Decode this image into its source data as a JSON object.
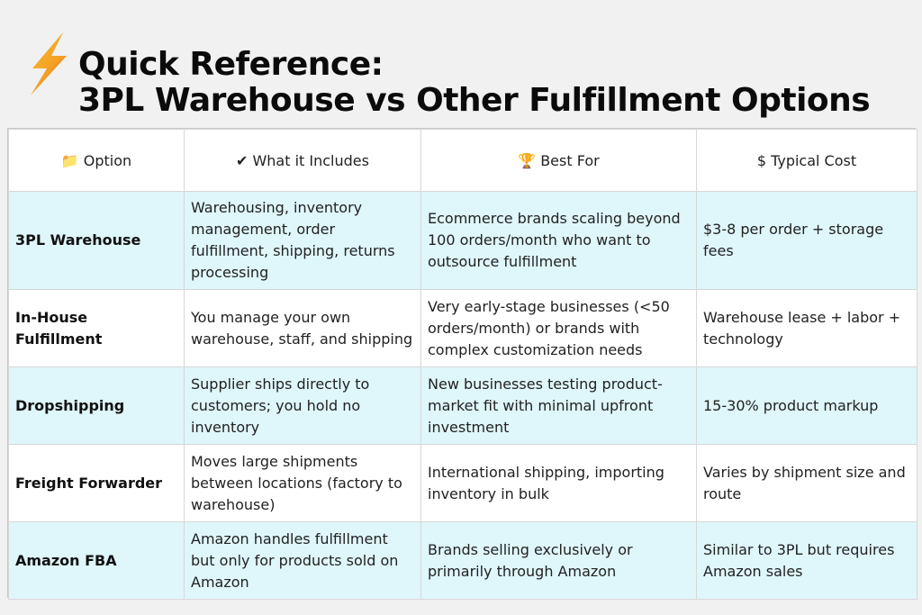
{
  "header": {
    "icon": "lightning-bolt-icon",
    "title_line1": "Quick Reference:",
    "title_line2": "3PL Warehouse vs Other Fulfillment Options"
  },
  "table": {
    "columns": [
      {
        "icon": "📁",
        "icon_name": "folder-icon",
        "label": "Option"
      },
      {
        "icon": "✔",
        "icon_name": "checkmark-icon",
        "label": "What it Includes"
      },
      {
        "icon": "🏆",
        "icon_name": "trophy-icon",
        "label": "Best For"
      },
      {
        "icon": "$",
        "icon_name": "dollar-icon",
        "label": "Typical Cost"
      }
    ],
    "rows": [
      {
        "option": "3PL Warehouse",
        "includes": "Warehousing, inventory management, order fulfillment, shipping, returns processing",
        "best_for": "Ecommerce brands scaling beyond 100 orders/month who want to outsource fulfillment",
        "cost": "$3-8 per order + storage fees"
      },
      {
        "option": "In-House Fulfillment",
        "includes": "You manage your own warehouse, staff, and shipping",
        "best_for": "Very early-stage businesses (<50 orders/month) or brands with complex customization needs",
        "cost": "Warehouse lease + labor + technology"
      },
      {
        "option": "Dropshipping",
        "includes": "Supplier ships directly to customers; you hold no inventory",
        "best_for": "New businesses testing product-market fit with minimal upfront investment",
        "cost": "15-30% product markup"
      },
      {
        "option": "Freight Forwarder",
        "includes": "Moves large shipments between locations (factory to warehouse)",
        "best_for": "International shipping, importing inventory in bulk",
        "cost": "Varies by shipment size and route"
      },
      {
        "option": "Amazon FBA",
        "includes": "Amazon handles fulfillment but only for products sold on Amazon",
        "best_for": "Brands selling exclusively or primarily through Amazon",
        "cost": "Similar to 3PL but requires Amazon sales"
      }
    ]
  },
  "colors": {
    "background": "#f1f1f1",
    "row_highlight": "#dff6fb",
    "row_plain": "#ffffff",
    "bolt_yellow": "#f5b51d",
    "bolt_orange": "#e8731c"
  }
}
